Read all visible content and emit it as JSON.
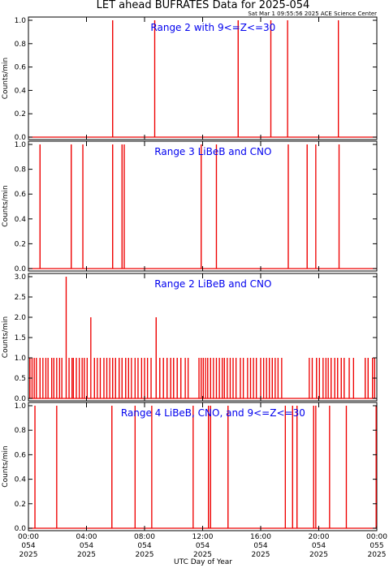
{
  "header": {
    "title": "LET ahead BUFRATES Data for 2025-054",
    "timestamp": "Sat Mar  1 09:55:56 2025 ACE Science Center"
  },
  "chart_data": {
    "type": "line",
    "xlabel": "UTC Day of Year",
    "ylabel": "Counts/min",
    "xlim": [
      0,
      24
    ],
    "x_ticks": [
      {
        "line1": "00:00",
        "line2": "054",
        "line3": "2025"
      },
      {
        "line1": "04:00",
        "line2": "054",
        "line3": "2025"
      },
      {
        "line1": "08:00",
        "line2": "054",
        "line3": "2025"
      },
      {
        "line1": "12:00",
        "line2": "054",
        "line3": "2025"
      },
      {
        "line1": "16:00",
        "line2": "054",
        "line3": "2025"
      },
      {
        "line1": "20:00",
        "line2": "054",
        "line3": "2025"
      },
      {
        "line1": "00:00",
        "line2": "055",
        "line3": "2025"
      }
    ],
    "grid": false,
    "series_color": "#ee0000",
    "panels": [
      {
        "title": "Range 2 with 9<=Z<=30",
        "ylim": [
          0,
          1.0
        ],
        "y_ticks": [
          "0.0",
          "0.2",
          "0.4",
          "0.6",
          "0.8",
          "1.0"
        ],
        "spikes": [
          {
            "x": 5.8,
            "y": 1.0
          },
          {
            "x": 8.7,
            "y": 1.0
          },
          {
            "x": 14.45,
            "y": 1.0
          },
          {
            "x": 16.7,
            "y": 1.0
          },
          {
            "x": 17.85,
            "y": 1.0
          },
          {
            "x": 21.35,
            "y": 1.0
          }
        ]
      },
      {
        "title": "Range 3 LiBeB and CNO",
        "ylim": [
          0,
          1.0
        ],
        "y_ticks": [
          "0.0",
          "0.2",
          "0.4",
          "0.6",
          "0.8",
          "1.0"
        ],
        "spikes": [
          {
            "x": 0.8,
            "y": 1.0
          },
          {
            "x": 2.95,
            "y": 1.0
          },
          {
            "x": 3.75,
            "y": 1.0
          },
          {
            "x": 5.8,
            "y": 1.0
          },
          {
            "x": 6.45,
            "y": 1.0
          },
          {
            "x": 6.6,
            "y": 1.0
          },
          {
            "x": 11.9,
            "y": 1.0
          },
          {
            "x": 12.95,
            "y": 1.0
          },
          {
            "x": 17.9,
            "y": 1.0
          },
          {
            "x": 19.2,
            "y": 1.0
          },
          {
            "x": 19.8,
            "y": 1.0
          },
          {
            "x": 21.4,
            "y": 1.0
          }
        ]
      },
      {
        "title": "Range 2 LiBeB and CNO",
        "ylim": [
          0,
          3.0
        ],
        "y_ticks": [
          "0.0",
          "0.5",
          "1.0",
          "1.5",
          "2.0",
          "2.5",
          "3.0"
        ],
        "spikes": [
          {
            "x": 0.1,
            "y": 1
          },
          {
            "x": 0.25,
            "y": 1
          },
          {
            "x": 0.4,
            "y": 1
          },
          {
            "x": 0.55,
            "y": 1
          },
          {
            "x": 0.8,
            "y": 1
          },
          {
            "x": 1.0,
            "y": 1
          },
          {
            "x": 1.2,
            "y": 1
          },
          {
            "x": 1.35,
            "y": 1
          },
          {
            "x": 1.6,
            "y": 1
          },
          {
            "x": 1.75,
            "y": 1
          },
          {
            "x": 1.95,
            "y": 1
          },
          {
            "x": 2.15,
            "y": 1
          },
          {
            "x": 2.3,
            "y": 1
          },
          {
            "x": 2.6,
            "y": 3
          },
          {
            "x": 2.8,
            "y": 1
          },
          {
            "x": 3.0,
            "y": 1
          },
          {
            "x": 3.1,
            "y": 1
          },
          {
            "x": 3.3,
            "y": 1
          },
          {
            "x": 3.5,
            "y": 1
          },
          {
            "x": 3.7,
            "y": 1
          },
          {
            "x": 3.85,
            "y": 1
          },
          {
            "x": 4.05,
            "y": 1
          },
          {
            "x": 4.3,
            "y": 2
          },
          {
            "x": 4.55,
            "y": 1
          },
          {
            "x": 4.75,
            "y": 1
          },
          {
            "x": 4.95,
            "y": 1
          },
          {
            "x": 5.2,
            "y": 1
          },
          {
            "x": 5.4,
            "y": 1
          },
          {
            "x": 5.6,
            "y": 1
          },
          {
            "x": 5.8,
            "y": 1
          },
          {
            "x": 6.0,
            "y": 1
          },
          {
            "x": 6.25,
            "y": 1
          },
          {
            "x": 6.45,
            "y": 1
          },
          {
            "x": 6.7,
            "y": 1
          },
          {
            "x": 6.9,
            "y": 1
          },
          {
            "x": 7.1,
            "y": 1
          },
          {
            "x": 7.35,
            "y": 1
          },
          {
            "x": 7.55,
            "y": 1
          },
          {
            "x": 7.8,
            "y": 1
          },
          {
            "x": 8.0,
            "y": 1
          },
          {
            "x": 8.2,
            "y": 1
          },
          {
            "x": 8.45,
            "y": 1
          },
          {
            "x": 8.8,
            "y": 2
          },
          {
            "x": 9.05,
            "y": 1
          },
          {
            "x": 9.3,
            "y": 1
          },
          {
            "x": 9.55,
            "y": 1
          },
          {
            "x": 9.8,
            "y": 1
          },
          {
            "x": 10.0,
            "y": 1
          },
          {
            "x": 10.25,
            "y": 1
          },
          {
            "x": 10.5,
            "y": 1
          },
          {
            "x": 10.8,
            "y": 1
          },
          {
            "x": 11.0,
            "y": 1
          },
          {
            "x": 11.75,
            "y": 1
          },
          {
            "x": 11.9,
            "y": 1
          },
          {
            "x": 12.05,
            "y": 1
          },
          {
            "x": 12.2,
            "y": 1
          },
          {
            "x": 12.35,
            "y": 1
          },
          {
            "x": 12.55,
            "y": 1
          },
          {
            "x": 12.75,
            "y": 1
          },
          {
            "x": 12.95,
            "y": 1
          },
          {
            "x": 13.15,
            "y": 1
          },
          {
            "x": 13.35,
            "y": 1
          },
          {
            "x": 13.5,
            "y": 1
          },
          {
            "x": 13.7,
            "y": 1
          },
          {
            "x": 13.9,
            "y": 1
          },
          {
            "x": 14.1,
            "y": 1
          },
          {
            "x": 14.3,
            "y": 1
          },
          {
            "x": 14.6,
            "y": 1
          },
          {
            "x": 14.8,
            "y": 1
          },
          {
            "x": 15.1,
            "y": 1
          },
          {
            "x": 15.3,
            "y": 1
          },
          {
            "x": 15.5,
            "y": 1
          },
          {
            "x": 15.7,
            "y": 1
          },
          {
            "x": 16.0,
            "y": 1
          },
          {
            "x": 16.2,
            "y": 1
          },
          {
            "x": 16.4,
            "y": 1
          },
          {
            "x": 16.6,
            "y": 1
          },
          {
            "x": 16.8,
            "y": 1
          },
          {
            "x": 17.0,
            "y": 1
          },
          {
            "x": 17.2,
            "y": 1
          },
          {
            "x": 17.45,
            "y": 1
          },
          {
            "x": 19.35,
            "y": 1
          },
          {
            "x": 19.55,
            "y": 1
          },
          {
            "x": 19.85,
            "y": 1
          },
          {
            "x": 20.05,
            "y": 1
          },
          {
            "x": 20.3,
            "y": 1
          },
          {
            "x": 20.5,
            "y": 1
          },
          {
            "x": 20.65,
            "y": 1
          },
          {
            "x": 20.85,
            "y": 1
          },
          {
            "x": 21.1,
            "y": 1
          },
          {
            "x": 21.3,
            "y": 1
          },
          {
            "x": 21.55,
            "y": 1
          },
          {
            "x": 21.75,
            "y": 1
          },
          {
            "x": 22.1,
            "y": 1
          },
          {
            "x": 22.4,
            "y": 1
          },
          {
            "x": 23.2,
            "y": 1
          },
          {
            "x": 23.4,
            "y": 1
          },
          {
            "x": 23.7,
            "y": 1
          },
          {
            "x": 23.85,
            "y": 1
          }
        ]
      },
      {
        "title": "Range 4 LiBeB, CNO, and 9<=Z<=30",
        "ylim": [
          0,
          1.0
        ],
        "y_ticks": [
          "0.0",
          "0.2",
          "0.4",
          "0.6",
          "0.8",
          "1.0"
        ],
        "spikes": [
          {
            "x": 0.45,
            "y": 1.0
          },
          {
            "x": 1.95,
            "y": 1.0
          },
          {
            "x": 5.75,
            "y": 1.0
          },
          {
            "x": 7.35,
            "y": 1.0
          },
          {
            "x": 8.5,
            "y": 1.0
          },
          {
            "x": 11.35,
            "y": 1.0
          },
          {
            "x": 12.4,
            "y": 1.0
          },
          {
            "x": 12.55,
            "y": 1.0
          },
          {
            "x": 13.75,
            "y": 1.0
          },
          {
            "x": 17.7,
            "y": 1.0
          },
          {
            "x": 18.2,
            "y": 1.0
          },
          {
            "x": 18.5,
            "y": 1.0
          },
          {
            "x": 19.65,
            "y": 1.0
          },
          {
            "x": 19.8,
            "y": 1.0
          },
          {
            "x": 20.75,
            "y": 1.0
          },
          {
            "x": 21.9,
            "y": 1.0
          },
          {
            "x": 23.95,
            "y": 1.0
          }
        ]
      }
    ]
  }
}
